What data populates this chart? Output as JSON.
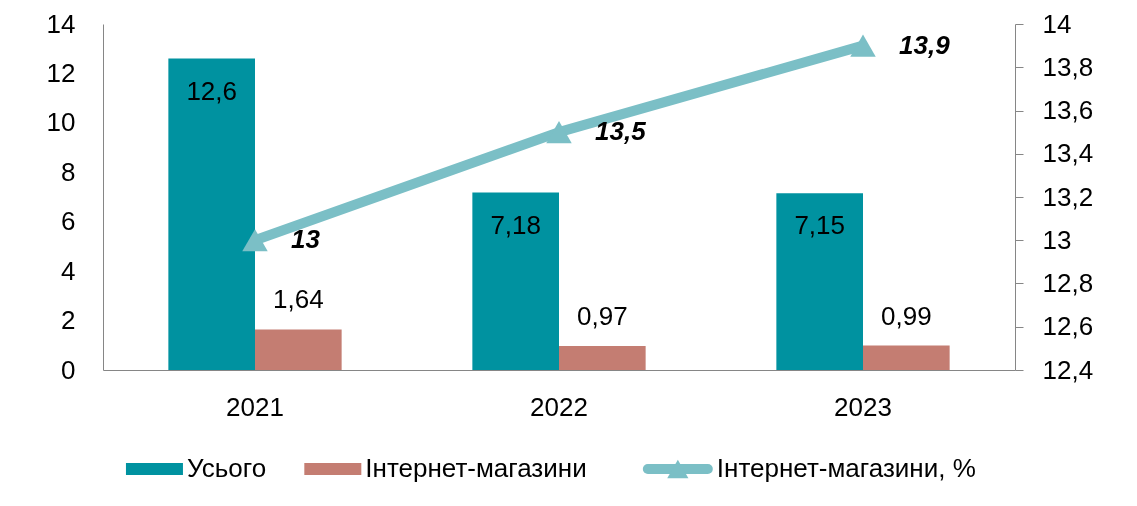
{
  "chart_data": {
    "type": "bar",
    "categories": [
      "2021",
      "2022",
      "2023"
    ],
    "series": [
      {
        "name": "Усього",
        "color": "#0092a0",
        "values": [
          12.6,
          7.18,
          7.15
        ],
        "value_labels": [
          "12,6",
          "7,18",
          "7,15"
        ]
      },
      {
        "name": "Інтернет-магазини",
        "color": "#c47d72",
        "values": [
          1.64,
          0.97,
          0.99
        ],
        "value_labels": [
          "1,64",
          "0,97",
          "0,99"
        ]
      },
      {
        "name": "Інтернет-магазини, %",
        "type": "line",
        "axis": "y2",
        "color": "#7bbfc6",
        "values": [
          13,
          13.5,
          13.9
        ],
        "value_labels": [
          "13",
          "13,5",
          "13,9"
        ]
      }
    ],
    "ylim": [
      0,
      14
    ],
    "yticks": [
      0,
      2,
      4,
      6,
      8,
      10,
      12,
      14
    ],
    "y2lim": [
      12.4,
      14
    ],
    "y2ticks": [
      {
        "value": 12.4,
        "label": "12,4"
      },
      {
        "value": 12.6,
        "label": "12,6"
      },
      {
        "value": 12.8,
        "label": "12,8"
      },
      13,
      {
        "value": 13.2,
        "label": "13,2"
      },
      {
        "value": 13.4,
        "label": "13,4"
      },
      {
        "value": 13.6,
        "label": "13,6"
      },
      {
        "value": 13.8,
        "label": "13,8"
      },
      14
    ],
    "marker": "triangle",
    "line_style": "solid",
    "legend": "bottom"
  }
}
